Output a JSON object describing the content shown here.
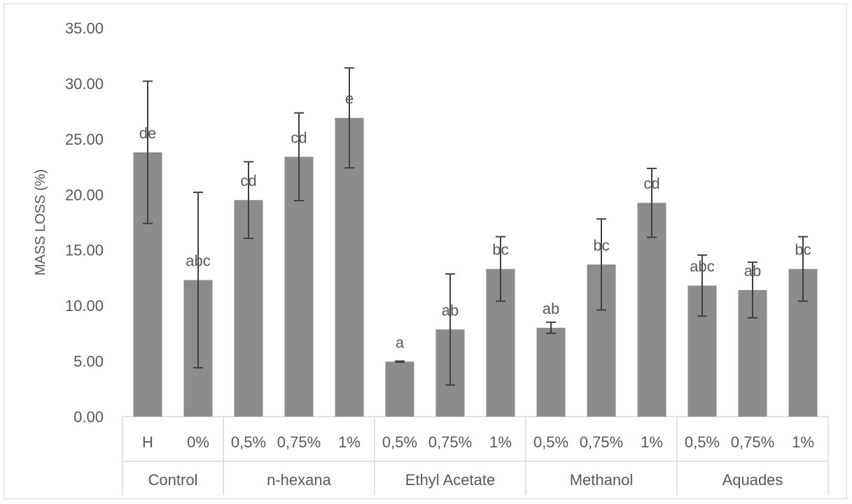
{
  "chart_data": {
    "type": "bar",
    "title": "",
    "xlabel": "",
    "ylabel": "MASS LOSS (%)",
    "ylim": [
      0,
      35
    ],
    "yticks": [
      "0.00",
      "5.00",
      "10.00",
      "15.00",
      "20.00",
      "25.00",
      "30.00",
      "35.00"
    ],
    "grid": false,
    "legend": "none",
    "bar_color": "#8c8c8c",
    "groups": [
      {
        "name": "Control",
        "categories": [
          "H",
          "0%"
        ]
      },
      {
        "name": "n-hexana",
        "categories": [
          "0,5%",
          "0,75%",
          "1%"
        ]
      },
      {
        "name": "Ethyl Acetate",
        "categories": [
          "0,5%",
          "0,75%",
          "1%"
        ]
      },
      {
        "name": "Methanol",
        "categories": [
          "0,5%",
          "0,75%",
          "1%"
        ]
      },
      {
        "name": "Aquades",
        "categories": [
          "0,5%",
          "0,75%",
          "1%"
        ]
      }
    ],
    "values": [
      23.8,
      12.3,
      19.5,
      23.4,
      26.9,
      4.95,
      7.85,
      13.3,
      8.0,
      13.7,
      19.25,
      11.8,
      11.4,
      13.3
    ],
    "errors": [
      6.4,
      7.9,
      3.45,
      3.95,
      4.5,
      0.05,
      5.0,
      2.9,
      0.5,
      4.1,
      3.1,
      2.75,
      2.5,
      2.9
    ],
    "significance": [
      "de",
      "abc",
      "cd",
      "cd",
      "e",
      "a",
      "ab",
      "bc",
      "ab",
      "bc",
      "cd",
      "abc",
      "ab",
      "bc"
    ]
  }
}
